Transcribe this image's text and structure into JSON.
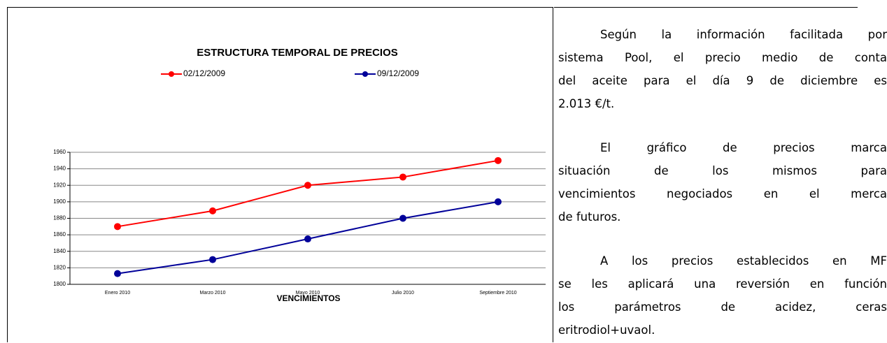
{
  "chart_data": {
    "type": "line",
    "title": "ESTRUCTURA TEMPORAL DE PRECIOS",
    "x_label": "VENCIMIENTOS",
    "categories": [
      "Enero 2010",
      "Marzo 2010",
      "Mayo 2010",
      "Julio 2010",
      "Septiembre 2010"
    ],
    "series": [
      {
        "name": "02/12/2009",
        "color": "#ff0000",
        "values": [
          1870,
          1889,
          1920,
          1930,
          1950
        ]
      },
      {
        "name": "09/12/2009",
        "color": "#000099",
        "values": [
          1813,
          1830,
          1855,
          1880,
          1900
        ]
      }
    ],
    "ylim": [
      1800,
      1960
    ],
    "yticks": [
      1800,
      1820,
      1840,
      1860,
      1880,
      1900,
      1920,
      1940,
      1960
    ],
    "grid": true
  },
  "text": {
    "paragraphs": [
      [
        "Según la información facilitada por",
        "sistema Pool, el precio medio de conta",
        "del aceite para el día 9 de diciembre es",
        "2.013 €/t."
      ],
      [
        "El gráfico de precios marca",
        "situación de los mismos para",
        "vencimientos negociados en el merca",
        "de futuros."
      ],
      [
        "A los precios establecidos en MF",
        "se les aplicará una reversión en función",
        "los parámetros de acidez, ceras",
        "eritrodiol+uvaol."
      ]
    ]
  }
}
